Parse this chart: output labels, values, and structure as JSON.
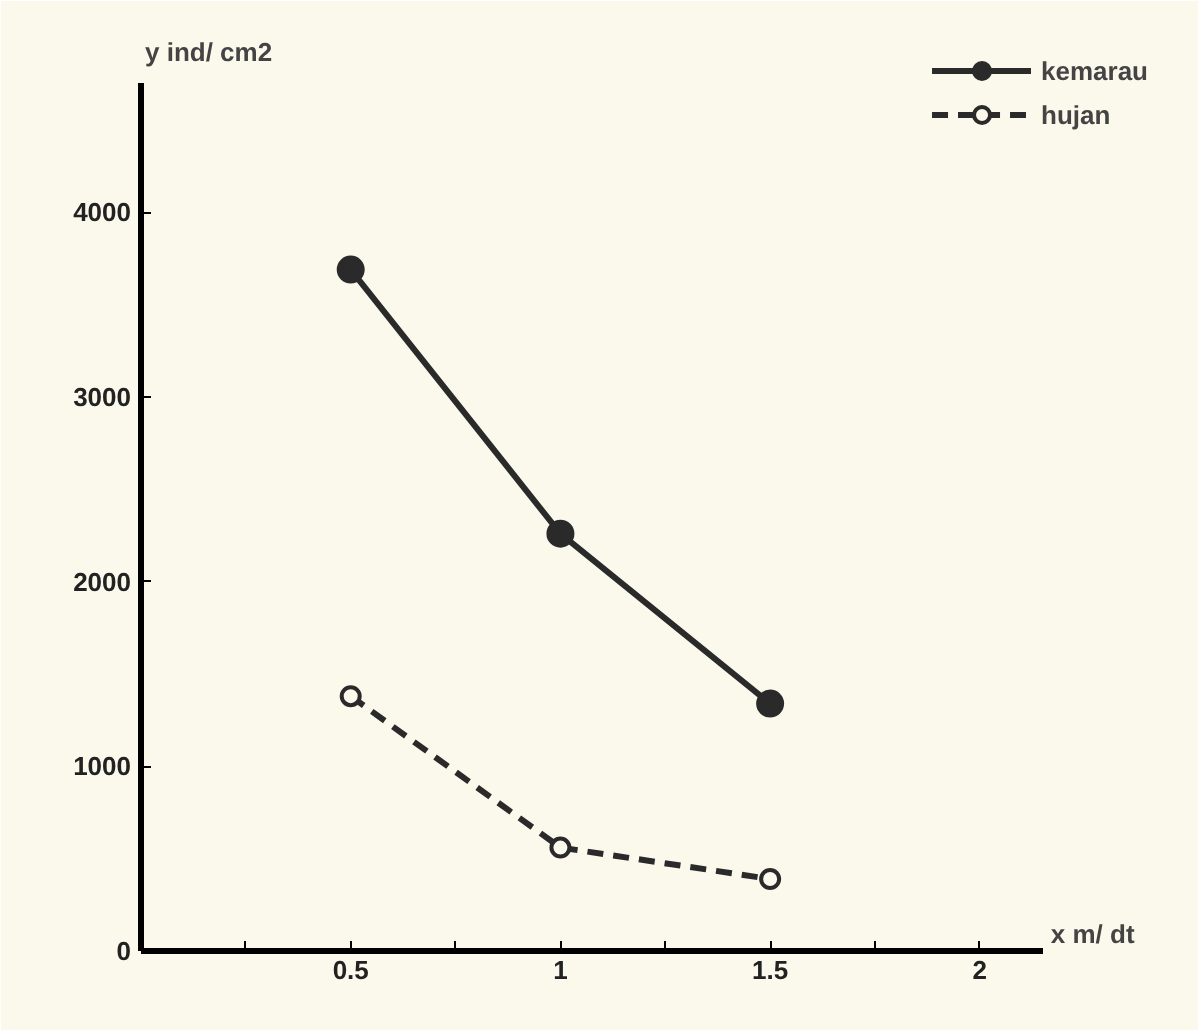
{
  "chart_data": {
    "type": "line",
    "xlabel": "x m/ dt",
    "ylabel": "y ind/ cm2",
    "x": [
      0.5,
      1,
      1.5
    ],
    "series": [
      {
        "name": "kemarau",
        "color": "#2a2a2a",
        "values": [
          3690,
          2260,
          1340
        ],
        "line_style": "solid",
        "marker": "circle"
      },
      {
        "name": "hujan",
        "color": "#2a2a2a",
        "values": [
          1380,
          560,
          390
        ],
        "line_style": "dashed",
        "marker": "circle"
      }
    ],
    "xlim": [
      0,
      2.15
    ],
    "ylim": [
      0,
      4700
    ],
    "xticks": [
      {
        "value": 0.25,
        "label": null
      },
      0.5,
      {
        "value": 0.75,
        "label": null
      },
      1,
      {
        "value": 1.25,
        "label": null
      },
      1.5,
      {
        "value": 1.75,
        "label": null
      },
      2
    ],
    "yticks": [
      0,
      1000,
      2000,
      3000,
      4000
    ],
    "grid": false,
    "legend": "top right"
  }
}
